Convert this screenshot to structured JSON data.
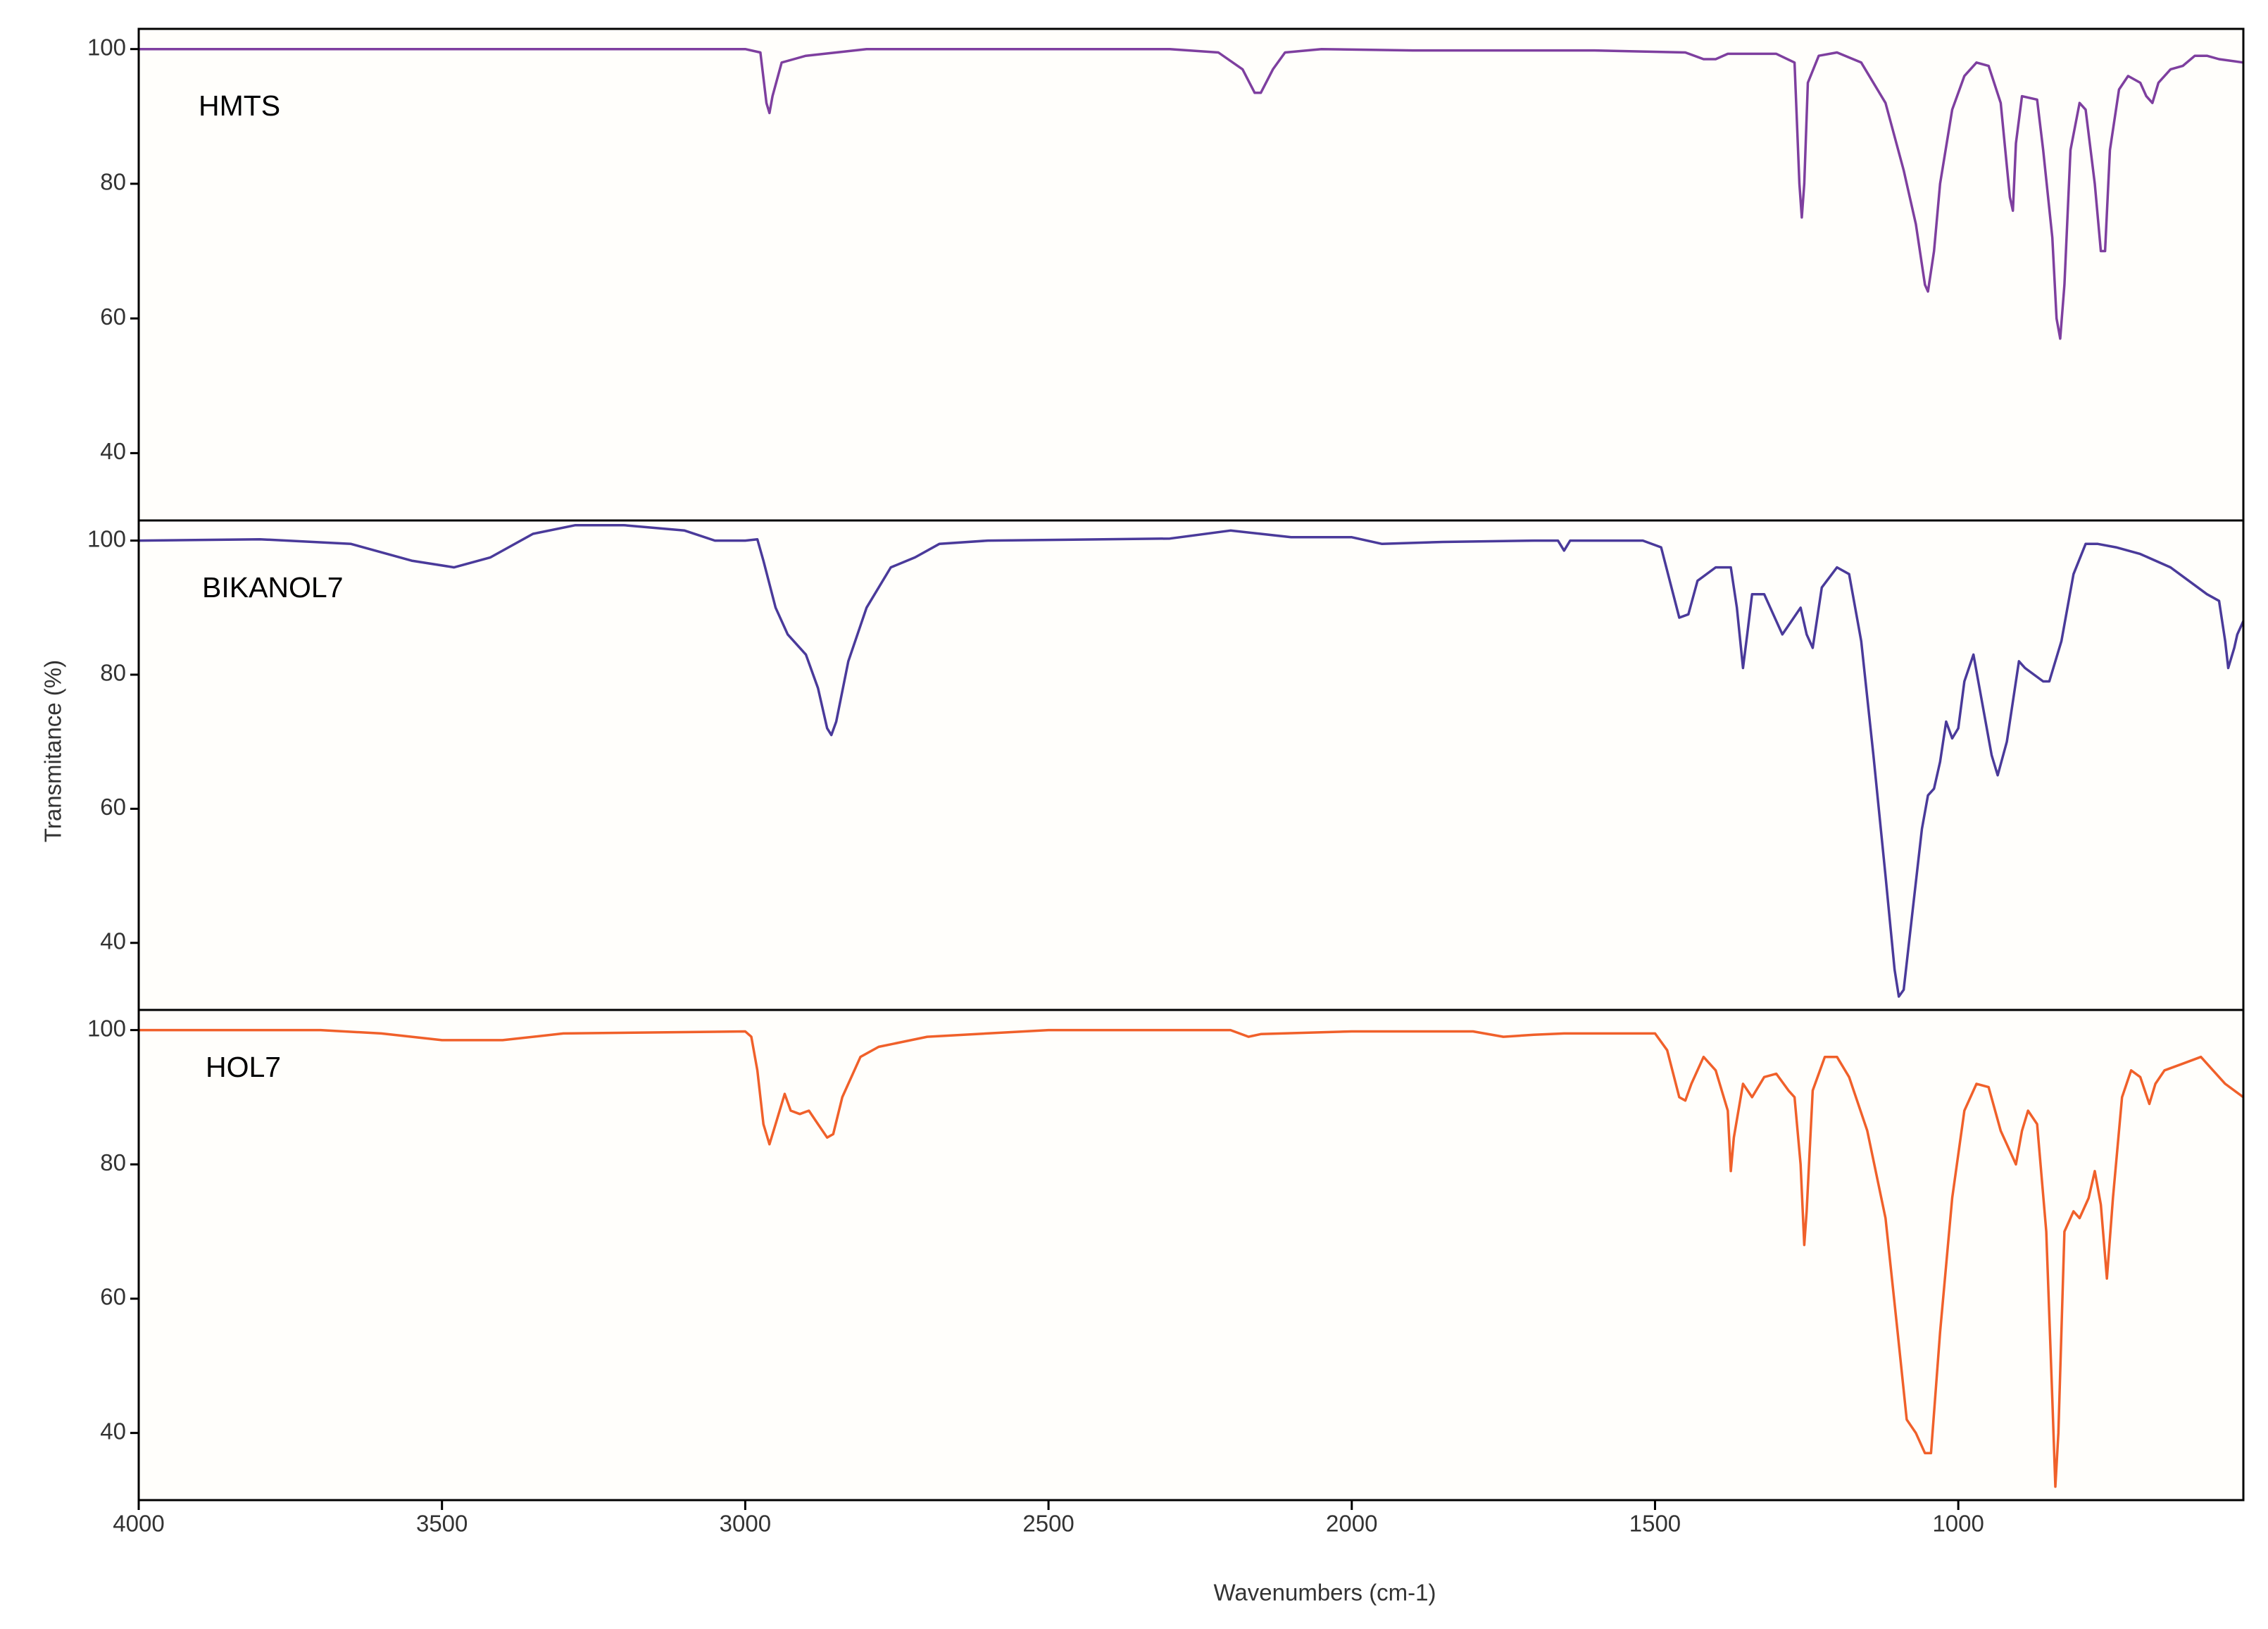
{
  "chart_data": [
    {
      "type": "line",
      "xlim": [
        4000,
        530
      ],
      "ylim": [
        30,
        103
      ],
      "yticks": [
        40,
        60,
        80,
        100
      ],
      "x": [
        4000,
        3500,
        3000,
        2975,
        2965,
        2960,
        2955,
        2940,
        2920,
        2900,
        2850,
        2800,
        2300,
        2220,
        2180,
        2160,
        2150,
        2130,
        2110,
        2050,
        1900,
        1600,
        1450,
        1420,
        1400,
        1380,
        1300,
        1270,
        1262,
        1258,
        1254,
        1248,
        1230,
        1200,
        1160,
        1120,
        1090,
        1070,
        1055,
        1050,
        1040,
        1030,
        1010,
        990,
        970,
        950,
        930,
        915,
        910,
        905,
        895,
        870,
        860,
        845,
        838,
        832,
        825,
        815,
        800,
        790,
        775,
        765,
        758,
        750,
        735,
        720,
        700,
        690,
        680,
        670,
        650,
        630,
        610,
        590,
        570,
        530
      ],
      "series": [
        {
          "name": "HMTS",
          "color": "#7e3f9f",
          "values": [
            100,
            100,
            100,
            99.5,
            92,
            90.5,
            93,
            98,
            98.5,
            99,
            99.5,
            100,
            100,
            99.5,
            97,
            93.5,
            93.5,
            97,
            99.5,
            100,
            99.8,
            99.8,
            99.5,
            98.5,
            98.5,
            99.3,
            99.3,
            98,
            80,
            75,
            80,
            95,
            99,
            99.5,
            98,
            92,
            82,
            74,
            65,
            64,
            70,
            80,
            91,
            96,
            98,
            97.5,
            92,
            78,
            76,
            86,
            93,
            92.5,
            85,
            72,
            60,
            57,
            65,
            85,
            92,
            91,
            80,
            70,
            70,
            85,
            94,
            96,
            95,
            93,
            92,
            95,
            97,
            97.5,
            99,
            99,
            98.5,
            98
          ]
        }
      ]
    },
    {
      "type": "line",
      "xlim": [
        4000,
        530
      ],
      "ylim": [
        30,
        103
      ],
      "yticks": [
        40,
        60,
        80,
        100
      ],
      "ylabel": "Transmitance (%)",
      "x": [
        4000,
        3800,
        3650,
        3550,
        3480,
        3420,
        3350,
        3280,
        3200,
        3100,
        3050,
        3000,
        2980,
        2970,
        2950,
        2930,
        2900,
        2880,
        2865,
        2858,
        2850,
        2830,
        2800,
        2760,
        2720,
        2680,
        2600,
        2300,
        2200,
        2150,
        2100,
        2000,
        1950,
        1850,
        1700,
        1660,
        1650,
        1640,
        1600,
        1520,
        1490,
        1470,
        1460,
        1445,
        1430,
        1400,
        1375,
        1365,
        1355,
        1348,
        1340,
        1320,
        1300,
        1290,
        1275,
        1260,
        1250,
        1240,
        1225,
        1200,
        1180,
        1160,
        1140,
        1120,
        1105,
        1098,
        1090,
        1075,
        1060,
        1050,
        1040,
        1030,
        1020,
        1010,
        1000,
        990,
        975,
        965,
        945,
        935,
        920,
        900,
        890,
        875,
        860,
        850,
        830,
        810,
        790,
        770,
        740,
        700,
        650,
        620,
        590,
        570,
        560,
        555,
        545,
        540,
        530
      ],
      "series": [
        {
          "name": "BIKANOL7",
          "color": "#4a3a9a",
          "values": [
            100,
            100.2,
            99.5,
            97,
            96,
            97.5,
            101,
            102.3,
            102.3,
            101.5,
            100,
            100,
            100.2,
            97,
            90,
            86,
            83,
            78,
            72,
            71,
            73,
            82,
            90,
            96,
            97.5,
            99.5,
            100,
            100.3,
            101.5,
            101,
            100.5,
            100.5,
            99.5,
            99.8,
            100,
            100,
            98.5,
            100,
            100,
            100,
            99,
            92,
            88.5,
            89,
            94,
            96,
            96,
            90,
            81,
            86,
            92,
            92,
            88,
            86,
            88,
            90,
            86,
            84,
            93,
            96,
            95,
            85,
            68,
            50,
            36,
            32,
            33,
            45,
            57,
            62,
            63,
            67,
            73,
            70.5,
            72,
            79,
            83,
            78,
            68,
            65,
            70,
            82,
            81,
            80,
            79,
            79,
            85,
            95,
            99.5,
            99.5,
            99,
            98,
            96,
            94,
            92,
            91,
            85,
            81,
            84,
            86,
            88
          ]
        }
      ]
    },
    {
      "type": "line",
      "xlim": [
        4000,
        530
      ],
      "ylim": [
        30,
        103
      ],
      "yticks": [
        40,
        60,
        80,
        100
      ],
      "xticks": [
        4000,
        3500,
        3000,
        2500,
        2000,
        1500,
        1000
      ],
      "xlabel": "Wavenumbers (cm-1)",
      "x": [
        4000,
        3700,
        3600,
        3500,
        3400,
        3300,
        3000,
        2990,
        2980,
        2970,
        2960,
        2950,
        2935,
        2925,
        2910,
        2895,
        2880,
        2865,
        2855,
        2840,
        2810,
        2780,
        2700,
        2500,
        2200,
        2170,
        2150,
        2000,
        1800,
        1750,
        1700,
        1650,
        1500,
        1480,
        1460,
        1450,
        1440,
        1420,
        1400,
        1380,
        1375,
        1370,
        1355,
        1340,
        1320,
        1300,
        1280,
        1270,
        1260,
        1254,
        1250,
        1240,
        1220,
        1200,
        1180,
        1150,
        1120,
        1100,
        1085,
        1070,
        1055,
        1045,
        1030,
        1010,
        990,
        970,
        950,
        930,
        915,
        905,
        895,
        885,
        870,
        855,
        845,
        840,
        835,
        825,
        810,
        800,
        785,
        775,
        765,
        755,
        745,
        730,
        715,
        700,
        685,
        675,
        660,
        630,
        600,
        580,
        560,
        530
      ],
      "series": [
        {
          "name": "HOL7",
          "color": "#f0602a",
          "values": [
            100,
            100,
            99.5,
            98.5,
            98.5,
            99.5,
            99.8,
            99,
            94,
            86,
            83,
            86,
            90.5,
            88,
            87.5,
            88,
            86,
            84,
            84.5,
            90,
            96,
            97.5,
            99,
            100,
            100,
            99,
            99.4,
            99.8,
            99.8,
            99,
            99.3,
            99.5,
            99.5,
            97,
            90,
            89.5,
            92,
            96,
            94,
            88,
            79,
            84,
            92,
            90,
            93,
            93.5,
            91,
            90,
            80,
            68,
            73,
            91,
            96,
            96,
            93,
            85,
            72,
            55,
            42,
            40,
            37,
            37,
            55,
            75,
            88,
            92,
            91.5,
            85,
            82,
            80,
            85,
            88,
            86,
            70,
            45,
            32,
            40,
            70,
            73,
            72,
            75,
            79,
            74,
            63,
            75,
            90,
            94,
            93,
            89,
            92,
            94,
            95,
            96,
            94,
            92,
            90
          ]
        }
      ]
    }
  ]
}
